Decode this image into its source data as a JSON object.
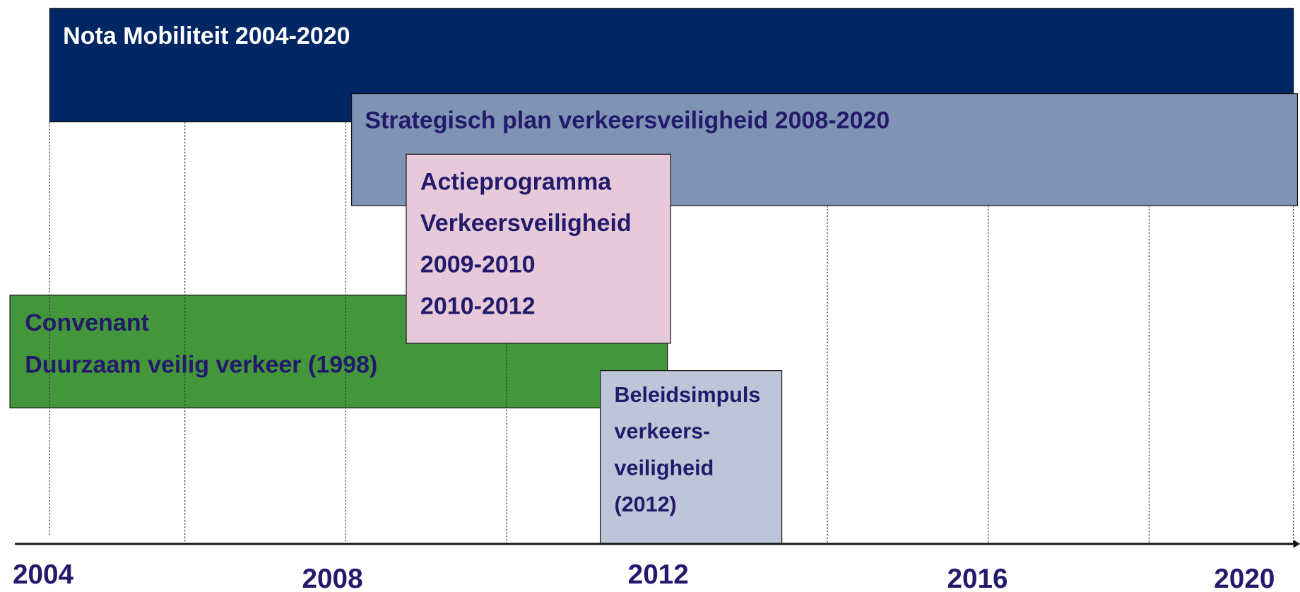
{
  "boxes": [
    {
      "lines": [
        "Nota Mobiliteit 2004-2020"
      ]
    },
    {
      "lines": [
        "Strategisch plan verkeersveiligheid 2008-2020"
      ]
    },
    {
      "lines": [
        "Convenant",
        "Duurzaam veilig verkeer (1998)"
      ]
    },
    {
      "lines": [
        "Actieprogramma",
        "Verkeersveiligheid",
        "2009-2010",
        "2010-2012"
      ]
    },
    {
      "lines": [
        "Beleidsimpuls",
        "verkeers-",
        "veiligheid",
        "(2012)"
      ]
    }
  ],
  "axis": {
    "labels": [
      "2004",
      "2008",
      "2012",
      "2016",
      "2020"
    ]
  }
}
